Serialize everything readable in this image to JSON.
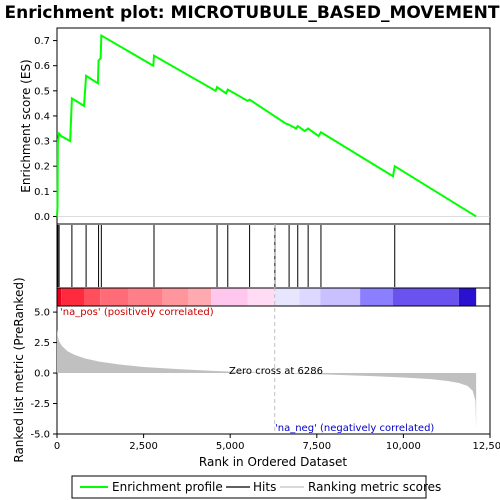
{
  "chart_data": {
    "type": "line",
    "title": "Enrichment plot: MICROTUBULE_BASED_MOVEMENT",
    "panels": {
      "enrichment": {
        "ylabel": "Enrichment score (ES)",
        "ylim": [
          -0.03,
          0.75
        ],
        "yticks": [
          "0.0",
          "0.1",
          "0.2",
          "0.3",
          "0.4",
          "0.5",
          "0.6",
          "0.7"
        ],
        "ytick_values": [
          0.0,
          0.1,
          0.2,
          0.3,
          0.4,
          0.5,
          0.6,
          0.7
        ],
        "series": [
          {
            "name": "Enrichment profile",
            "color": "#00ff00",
            "x": [
              0,
              15,
              25,
              60,
              120,
              380,
              430,
              780,
              840,
              1180,
              1200,
              1260,
              1280,
              2780,
              2800,
              4580,
              4620,
              4880,
              4930,
              5500,
              5560,
              6600,
              6700,
              6900,
              6950,
              7150,
              7250,
              7550,
              7620,
              9700,
              9750,
              12100
            ],
            "y": [
              0.0,
              0.04,
              0.3,
              0.33,
              0.32,
              0.3,
              0.47,
              0.44,
              0.56,
              0.53,
              0.62,
              0.63,
              0.72,
              0.6,
              0.64,
              0.5,
              0.515,
              0.49,
              0.505,
              0.46,
              0.465,
              0.37,
              0.365,
              0.35,
              0.36,
              0.34,
              0.35,
              0.32,
              0.335,
              0.16,
              0.2,
              0.0
            ]
          }
        ]
      },
      "hits": {
        "positions": [
          25,
          60,
          430,
          840,
          1200,
          1280,
          2800,
          4620,
          4930,
          5560,
          6290,
          6700,
          6950,
          7250,
          7620,
          9750
        ]
      },
      "ranked_metric": {
        "ylabel": "Ranked list metric (PreRanked)",
        "xlabel": "Rank in Ordered Dataset",
        "ylim": [
          -5.0,
          5.5
        ],
        "yticks": [
          "5.0",
          "2.5",
          "0.0",
          "-2.5",
          "-5.0"
        ],
        "ytick_values": [
          5.0,
          2.5,
          0.0,
          -2.5,
          -5.0
        ],
        "xlim": [
          0,
          12500
        ],
        "xticks": [
          "0",
          "2,500",
          "5,000",
          "7,500",
          "10,000",
          "12,500"
        ],
        "xtick_values": [
          0,
          2500,
          5000,
          7500,
          10000,
          12500
        ],
        "zero_cross": 6286,
        "curve_x": [
          0,
          20,
          60,
          150,
          300,
          500,
          800,
          1200,
          1800,
          2500,
          3500,
          4500,
          5500,
          6286,
          7000,
          8000,
          9000,
          10000,
          10800,
          11300,
          11600,
          11850,
          12000,
          12080,
          12100
        ],
        "curve_y": [
          3.6,
          3.1,
          2.6,
          2.2,
          1.8,
          1.5,
          1.2,
          0.95,
          0.7,
          0.5,
          0.32,
          0.18,
          0.07,
          0.0,
          -0.06,
          -0.14,
          -0.24,
          -0.36,
          -0.5,
          -0.66,
          -0.82,
          -1.05,
          -1.45,
          -2.3,
          -4.6
        ]
      }
    },
    "annotations": {
      "pos_label": "'na_pos' (positively correlated)",
      "neg_label": "'na_neg' (negatively correlated)",
      "zero_cross_label": "Zero cross at 6286"
    },
    "legend": {
      "placement": "bottom",
      "items": [
        {
          "label": "Enrichment profile",
          "color": "#00ff00"
        },
        {
          "label": "Hits",
          "color": "#000000"
        },
        {
          "label": "Ranking metric scores",
          "color": "#c0c0c0"
        }
      ]
    },
    "colors": {
      "pos_label": "#cc0000",
      "neg_label": "#0000cc",
      "metric_fill": "#c0c0c0",
      "zero_line": "#c0c0c0"
    },
    "rank_bar": {
      "segments": [
        {
          "end": 120,
          "color": "#e8001c"
        },
        {
          "end": 800,
          "color": "#ff2a3e"
        },
        {
          "end": 1250,
          "color": "#ff4e5c"
        },
        {
          "end": 2050,
          "color": "#ff6b76"
        },
        {
          "end": 3050,
          "color": "#ff7f88"
        },
        {
          "end": 3800,
          "color": "#ff969d"
        },
        {
          "end": 4450,
          "color": "#ffaab0"
        },
        {
          "end": 5500,
          "color": "#ffc6ee"
        },
        {
          "end": 6286,
          "color": "#ffdcf3"
        },
        {
          "end": 7000,
          "color": "#e8e6ff"
        },
        {
          "end": 7600,
          "color": "#dcd8ff"
        },
        {
          "end": 8750,
          "color": "#c8c0ff"
        },
        {
          "end": 9700,
          "color": "#8c7fff"
        },
        {
          "end": 11600,
          "color": "#6a52ee"
        },
        {
          "end": 12100,
          "color": "#2a10d0"
        }
      ]
    }
  }
}
